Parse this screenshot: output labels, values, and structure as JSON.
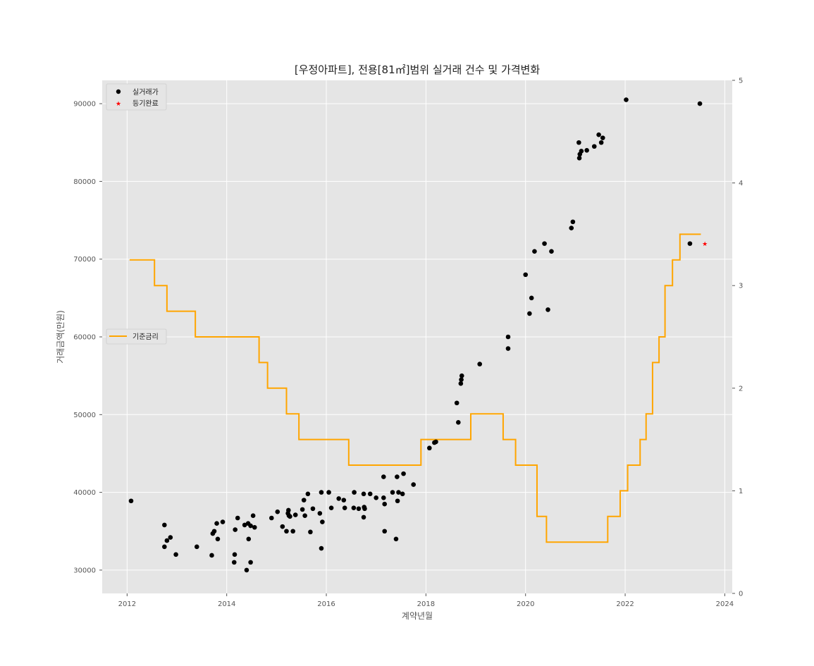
{
  "chart_data": {
    "type": "scatter",
    "title": "[우정아파트], 전용[81㎡]범위 실거래 건수 및 가격변화",
    "xlabel": "계약년월",
    "ylabel": "거래금액(만원)",
    "xlim": [
      2011.5,
      2024.15
    ],
    "ylim": [
      27000,
      93000
    ],
    "y2lim": [
      0,
      5
    ],
    "x_ticks": [
      2012,
      2014,
      2016,
      2018,
      2020,
      2022,
      2024
    ],
    "x_tick_labels": [
      "2012",
      "2014",
      "2016",
      "2018",
      "2020",
      "2022",
      "2024"
    ],
    "y_ticks": [
      30000,
      40000,
      50000,
      60000,
      70000,
      80000,
      90000
    ],
    "y_tick_labels": [
      "30000",
      "40000",
      "50000",
      "60000",
      "70000",
      "80000",
      "90000"
    ],
    "y2_ticks": [
      0,
      1,
      2,
      3,
      4,
      5
    ],
    "y2_tick_labels": [
      "0",
      "1",
      "2",
      "3",
      "4",
      "5"
    ],
    "grid": true,
    "background": "#e5e5e5",
    "legend_placement": "top-left",
    "legend_placement_rate": "center-left",
    "series": [
      {
        "name": "실거래가",
        "kind": "scatter",
        "marker": "circle",
        "color": "#000000",
        "points": [
          [
            2012.08,
            38900
          ],
          [
            2012.75,
            35800
          ],
          [
            2012.75,
            33000
          ],
          [
            2012.8,
            33800
          ],
          [
            2012.87,
            34200
          ],
          [
            2012.98,
            32000
          ],
          [
            2013.4,
            33000
          ],
          [
            2013.7,
            31900
          ],
          [
            2013.72,
            34700
          ],
          [
            2013.75,
            35000
          ],
          [
            2013.8,
            36000
          ],
          [
            2013.82,
            34000
          ],
          [
            2013.92,
            36200
          ],
          [
            2014.15,
            31000
          ],
          [
            2014.16,
            32000
          ],
          [
            2014.17,
            35200
          ],
          [
            2014.22,
            36700
          ],
          [
            2014.36,
            35800
          ],
          [
            2014.4,
            30000
          ],
          [
            2014.43,
            36000
          ],
          [
            2014.44,
            34000
          ],
          [
            2014.48,
            35700
          ],
          [
            2014.48,
            31000
          ],
          [
            2014.53,
            37000
          ],
          [
            2014.56,
            35500
          ],
          [
            2014.9,
            36700
          ],
          [
            2015.02,
            37500
          ],
          [
            2015.12,
            35600
          ],
          [
            2015.2,
            35000
          ],
          [
            2015.23,
            37300
          ],
          [
            2015.24,
            37700
          ],
          [
            2015.25,
            37000
          ],
          [
            2015.27,
            36900
          ],
          [
            2015.33,
            35000
          ],
          [
            2015.38,
            37100
          ],
          [
            2015.52,
            37800
          ],
          [
            2015.55,
            39000
          ],
          [
            2015.57,
            37000
          ],
          [
            2015.63,
            39800
          ],
          [
            2015.68,
            34900
          ],
          [
            2015.73,
            37900
          ],
          [
            2015.87,
            37300
          ],
          [
            2015.9,
            40000
          ],
          [
            2015.9,
            32800
          ],
          [
            2015.92,
            36200
          ],
          [
            2016.05,
            40000
          ],
          [
            2016.1,
            38000
          ],
          [
            2016.25,
            39200
          ],
          [
            2016.35,
            39000
          ],
          [
            2016.37,
            38000
          ],
          [
            2016.55,
            38000
          ],
          [
            2016.56,
            40000
          ],
          [
            2016.65,
            37900
          ],
          [
            2016.75,
            39800
          ],
          [
            2016.76,
            38100
          ],
          [
            2016.77,
            37900
          ],
          [
            2016.75,
            36800
          ],
          [
            2016.88,
            39800
          ],
          [
            2017.0,
            39300
          ],
          [
            2017.15,
            42000
          ],
          [
            2017.15,
            39300
          ],
          [
            2017.17,
            38500
          ],
          [
            2017.17,
            35000
          ],
          [
            2017.33,
            40000
          ],
          [
            2017.4,
            34000
          ],
          [
            2017.42,
            42000
          ],
          [
            2017.43,
            38900
          ],
          [
            2017.45,
            40000
          ],
          [
            2017.53,
            39800
          ],
          [
            2017.55,
            42400
          ],
          [
            2017.75,
            41000
          ],
          [
            2018.07,
            45700
          ],
          [
            2018.17,
            46400
          ],
          [
            2018.2,
            46500
          ],
          [
            2018.62,
            51500
          ],
          [
            2018.65,
            49000
          ],
          [
            2018.7,
            54000
          ],
          [
            2018.71,
            54500
          ],
          [
            2018.72,
            55000
          ],
          [
            2019.08,
            56500
          ],
          [
            2019.65,
            60000
          ],
          [
            2019.65,
            58500
          ],
          [
            2020.0,
            68000
          ],
          [
            2020.08,
            63000
          ],
          [
            2020.12,
            65000
          ],
          [
            2020.18,
            71000
          ],
          [
            2020.38,
            72000
          ],
          [
            2020.45,
            63500
          ],
          [
            2020.52,
            71000
          ],
          [
            2020.92,
            74000
          ],
          [
            2020.95,
            74800
          ],
          [
            2021.07,
            85000
          ],
          [
            2021.08,
            83000
          ],
          [
            2021.09,
            83500
          ],
          [
            2021.12,
            83900
          ],
          [
            2021.23,
            84000
          ],
          [
            2021.38,
            84500
          ],
          [
            2021.47,
            86000
          ],
          [
            2021.52,
            85000
          ],
          [
            2021.55,
            85600
          ],
          [
            2022.02,
            90500
          ],
          [
            2023.3,
            72000
          ],
          [
            2023.5,
            90000
          ]
        ]
      },
      {
        "name": "등기완료",
        "kind": "scatter",
        "marker": "star",
        "color": "#ff0000",
        "points": [
          [
            2023.6,
            72000
          ]
        ]
      },
      {
        "name": "기준금리",
        "kind": "step",
        "axis": "right",
        "color": "#ffa500",
        "points": [
          [
            2012.05,
            3.25
          ],
          [
            2012.55,
            3.0
          ],
          [
            2012.8,
            2.75
          ],
          [
            2013.37,
            2.5
          ],
          [
            2014.65,
            2.25
          ],
          [
            2014.82,
            2.0
          ],
          [
            2015.2,
            1.75
          ],
          [
            2015.45,
            1.5
          ],
          [
            2016.45,
            1.25
          ],
          [
            2017.9,
            1.5
          ],
          [
            2018.9,
            1.75
          ],
          [
            2019.55,
            1.5
          ],
          [
            2019.8,
            1.25
          ],
          [
            2020.23,
            0.75
          ],
          [
            2020.42,
            0.5
          ],
          [
            2021.65,
            0.75
          ],
          [
            2021.9,
            1.0
          ],
          [
            2022.05,
            1.25
          ],
          [
            2022.3,
            1.5
          ],
          [
            2022.42,
            1.75
          ],
          [
            2022.55,
            2.25
          ],
          [
            2022.68,
            2.5
          ],
          [
            2022.8,
            3.0
          ],
          [
            2022.95,
            3.25
          ],
          [
            2023.1,
            3.5
          ],
          [
            2023.52,
            3.5
          ]
        ]
      }
    ]
  }
}
